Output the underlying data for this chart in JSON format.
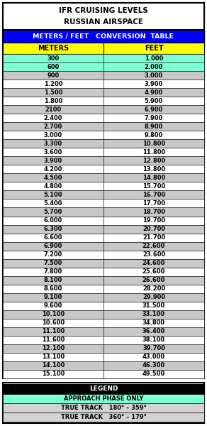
{
  "title_line1": "IFR CRUISING LEVELS",
  "title_line2": "RUSSIAN AIRSPACE",
  "header_label": "METERS / FEET   CONVERSION  TABLE",
  "col_headers": [
    "METERS",
    "FEET"
  ],
  "rows": [
    [
      "300",
      "1.000",
      "cyan"
    ],
    [
      "600",
      "2.000",
      "cyan"
    ],
    [
      "900",
      "3.000",
      "gray"
    ],
    [
      "1.200",
      "3.900",
      "white"
    ],
    [
      "1.500",
      "4.900",
      "gray"
    ],
    [
      "1.800",
      "5.900",
      "white"
    ],
    [
      "2100",
      "6.900",
      "gray"
    ],
    [
      "2.400",
      "7.900",
      "white"
    ],
    [
      "2.700",
      "8.900",
      "gray"
    ],
    [
      "3.000",
      "9.800",
      "white"
    ],
    [
      "3.300",
      "10.800",
      "gray"
    ],
    [
      "3.600",
      "11.800",
      "white"
    ],
    [
      "3.900",
      "12.800",
      "gray"
    ],
    [
      "4.200",
      "13.800",
      "white"
    ],
    [
      "4.500",
      "14.800",
      "gray"
    ],
    [
      "4.800",
      "15.700",
      "white"
    ],
    [
      "5.100",
      "16.700",
      "gray"
    ],
    [
      "5.400",
      "17.700",
      "white"
    ],
    [
      "5.700",
      "18.700",
      "gray"
    ],
    [
      "6.000",
      "19.700",
      "white"
    ],
    [
      "6.300",
      "20.700",
      "gray"
    ],
    [
      "6.600",
      "21.700",
      "white"
    ],
    [
      "6.900",
      "22.600",
      "gray"
    ],
    [
      "7.200",
      "23.600",
      "white"
    ],
    [
      "7.500",
      "24.600",
      "gray"
    ],
    [
      "7.800",
      "25.600",
      "white"
    ],
    [
      "8.100",
      "26.600",
      "gray"
    ],
    [
      "8.600",
      "28.200",
      "white"
    ],
    [
      "9.100",
      "29.900",
      "gray"
    ],
    [
      "9.600",
      "31.500",
      "white"
    ],
    [
      "10.100",
      "33.100",
      "gray"
    ],
    [
      "10.600",
      "34.800",
      "white"
    ],
    [
      "11.100",
      "36.400",
      "gray"
    ],
    [
      "11.600",
      "38.100",
      "white"
    ],
    [
      "12.100",
      "39.700",
      "gray"
    ],
    [
      "13.100",
      "43.000",
      "white"
    ],
    [
      "14.100",
      "46.300",
      "gray"
    ],
    [
      "15.100",
      "49.500",
      "white"
    ]
  ],
  "legend_title": "LEGEND",
  "legend_rows": [
    {
      "text": "APPROACH PHASE ONLY",
      "bg": "#7FFFD4"
    },
    {
      "text": "TRUE TRACK   180° – 359°",
      "bg": "#D3D3D3"
    },
    {
      "text": "TRUE TRACK   360° – 179°",
      "bg": "#D3D3D3"
    }
  ],
  "header_bg": "#0000FF",
  "header_fg": "#FFFFFF",
  "col_header_bg": "#FFFF00",
  "col_header_fg": "#000000",
  "approach_bg": "#7FFFD4",
  "gray_bg": "#C8C8C8",
  "white_bg": "#FFFFFF",
  "border_color": "#000000",
  "legend_title_bg": "#000000",
  "legend_title_fg": "#FFFFFF",
  "fig_width": 2.92,
  "fig_height": 6.0,
  "dpi": 100
}
